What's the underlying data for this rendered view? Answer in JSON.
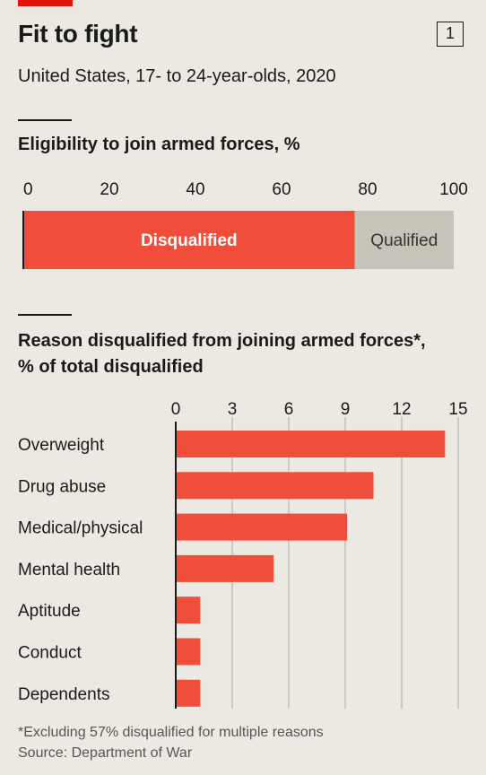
{
  "header": {
    "title": "Fit to fight",
    "chart_number": "1",
    "subtitle": "United States, 17- to 24-year-olds, 2020"
  },
  "colors": {
    "accent": "#e3120b",
    "bar": "#f04e3a",
    "qualified": "#c6c3b9",
    "background": "#ece9e3",
    "grid": "#a9a9a9"
  },
  "chart_data": [
    {
      "type": "bar",
      "title": "Eligibility to join armed forces, %",
      "orientation": "horizontal",
      "stacked": true,
      "xlim": [
        0,
        100
      ],
      "ticks": [
        0,
        20,
        40,
        60,
        80,
        100
      ],
      "series": [
        {
          "name": "Disqualified",
          "value": 77,
          "color": "#f04e3a"
        },
        {
          "name": "Qualified",
          "value": 23,
          "color": "#c6c3b9"
        }
      ]
    },
    {
      "type": "bar",
      "title": "Reason disqualified from joining armed forces*,",
      "title_line2": "% of total disqualified",
      "orientation": "horizontal",
      "xlim": [
        0,
        15
      ],
      "ticks": [
        0,
        3,
        6,
        9,
        12,
        15
      ],
      "categories": [
        "Overweight",
        "Drug abuse",
        "Medical/physical",
        "Mental health",
        "Aptitude",
        "Conduct",
        "Dependents"
      ],
      "values": [
        14.3,
        10.5,
        9.1,
        5.2,
        1.3,
        1.3,
        1.3
      ],
      "grid": true
    }
  ],
  "footer": {
    "footnote": "*Excluding 57% disqualified for multiple reasons",
    "source": "Source: Department of War"
  }
}
